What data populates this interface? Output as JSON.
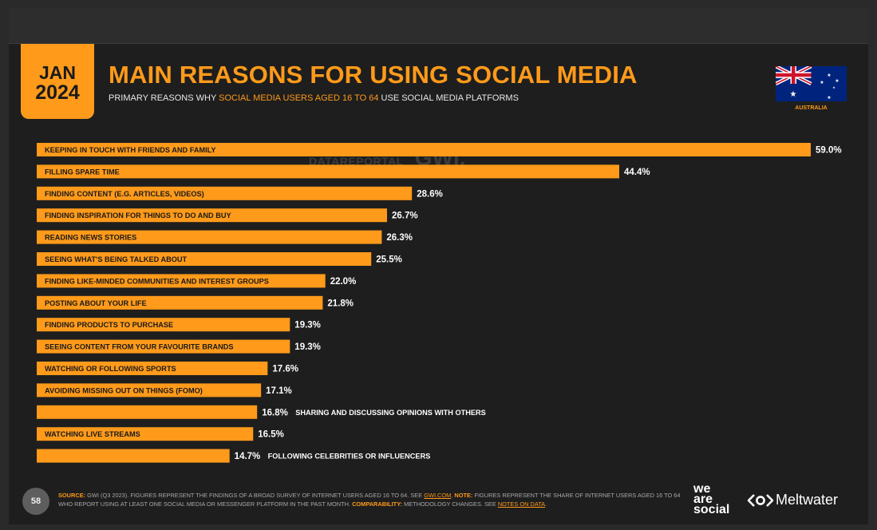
{
  "header": {
    "month": "JAN",
    "year": "2024",
    "title": "MAIN REASONS FOR USING SOCIAL MEDIA",
    "subtitle_pre": "PRIMARY REASONS WHY ",
    "subtitle_highlight": "SOCIAL MEDIA USERS AGED 16 TO 64",
    "subtitle_post": " USE SOCIAL MEDIA PLATFORMS",
    "country": "AUSTRALIA"
  },
  "watermark": {
    "left": "DATAREPORTAL",
    "right": "GWI."
  },
  "chart_data": {
    "type": "bar",
    "orientation": "horizontal",
    "title": "MAIN REASONS FOR USING SOCIAL MEDIA",
    "xlim": [
      0,
      59.0
    ],
    "value_suffix": "%",
    "categories": [
      "KEEPING IN TOUCH WITH FRIENDS AND FAMILY",
      "FILLING SPARE TIME",
      "FINDING CONTENT (E.G. ARTICLES, VIDEOS)",
      "FINDING INSPIRATION FOR THINGS TO DO AND BUY",
      "READING NEWS STORIES",
      "SEEING WHAT'S BEING TALKED ABOUT",
      "FINDING LIKE-MINDED COMMUNITIES AND INTEREST GROUPS",
      "POSTING ABOUT YOUR LIFE",
      "FINDING PRODUCTS TO PURCHASE",
      "SEEING CONTENT FROM YOUR FAVOURITE BRANDS",
      "WATCHING OR FOLLOWING SPORTS",
      "AVOIDING MISSING OUT ON THINGS (FOMO)",
      "SHARING AND DISCUSSING OPINIONS WITH OTHERS",
      "WATCHING LIVE STREAMS",
      "FOLLOWING CELEBRITIES OR INFLUENCERS"
    ],
    "values": [
      59.0,
      44.4,
      28.6,
      26.7,
      26.3,
      25.5,
      22.0,
      21.8,
      19.3,
      19.3,
      17.6,
      17.1,
      16.8,
      16.5,
      14.7
    ],
    "value_labels": [
      "59.0%",
      "44.4%",
      "28.6%",
      "26.7%",
      "26.3%",
      "25.5%",
      "22.0%",
      "21.8%",
      "19.3%",
      "19.3%",
      "17.6%",
      "17.1%",
      "16.8%",
      "16.5%",
      "14.7%"
    ],
    "label_outside": [
      false,
      false,
      false,
      false,
      false,
      false,
      false,
      false,
      false,
      false,
      false,
      false,
      true,
      false,
      true
    ]
  },
  "footer": {
    "page_number": "58",
    "source_label": "SOURCE:",
    "source_text": " GWI (Q3 2023). FIGURES REPRESENT THE FINDINGS OF A BROAD SURVEY OF INTERNET USERS AGED 16 TO 64. SEE ",
    "source_link": "GWI.COM",
    "note_sep": ". ",
    "note_label": "NOTE:",
    "note_text": " FIGURES REPRESENT THE SHARE OF INTERNET USERS AGED 16 TO 64 WHO REPORT USING AT LEAST ONE SOCIAL MEDIA OR MESSENGER PLATFORM IN THE PAST MONTH. ",
    "comp_label": "COMPARABILITY:",
    "comp_text": " METHODOLOGY CHANGES. SEE ",
    "comp_link": "NOTES ON DATA",
    "comp_end": "."
  },
  "brands": {
    "was_1": "we",
    "was_2": "are",
    "was_3": "social",
    "meltwater": "Meltwater"
  },
  "colors": {
    "accent": "#ff9a1a",
    "background": "#1e1e1e",
    "bar_text": "#1a1a1a",
    "value_text": "#ffffff",
    "flag_blue": "#00247d",
    "flag_red": "#cf142b"
  }
}
